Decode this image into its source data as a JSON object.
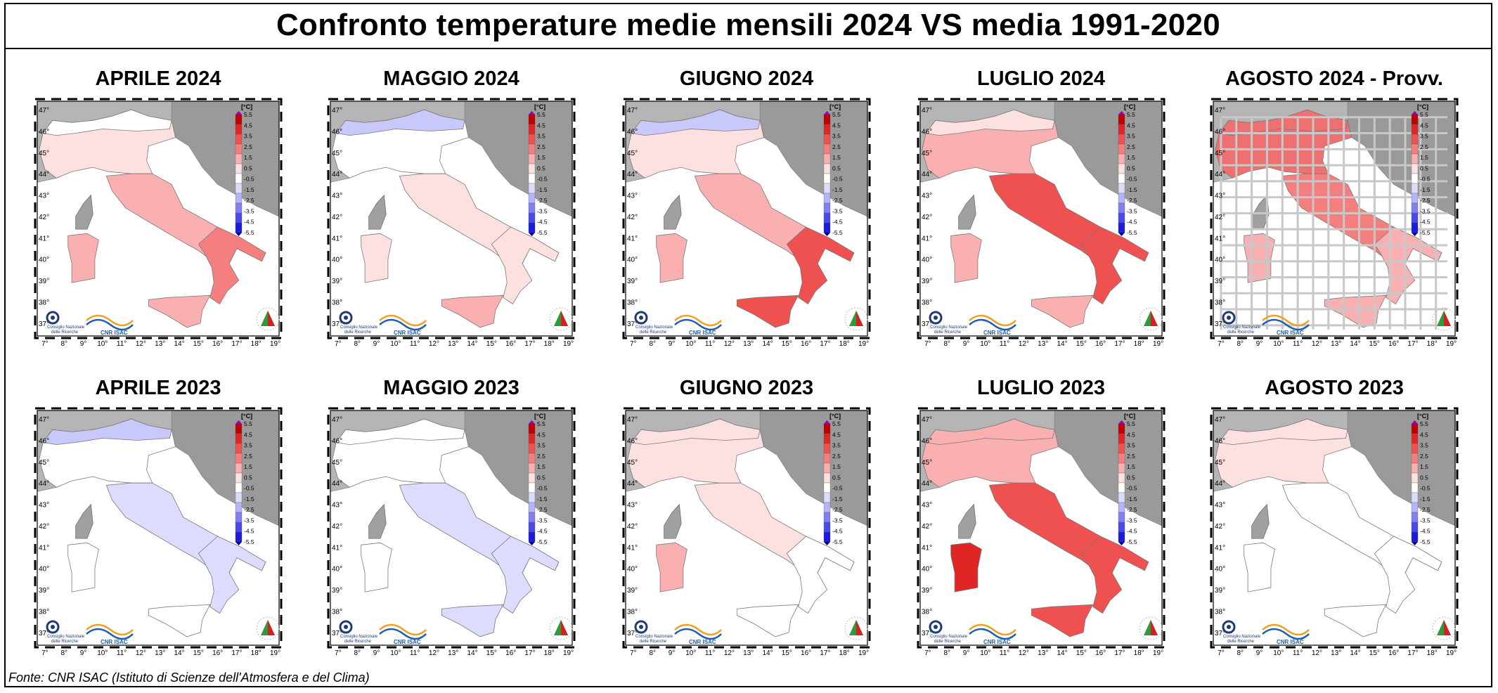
{
  "title": "Confronto temperature medie mensili 2024 VS media 1991-2020",
  "source": "Fonte: CNR ISAC (Istituto di Scienze dell'Atmosfera e del Clima)",
  "scale_unit": "[°C]",
  "scale_ticks": [
    "5.5",
    "4.5",
    "3.5",
    "2.5",
    "1.5",
    "0.5",
    "-0.5",
    "-1.5",
    "-2.5",
    "-3.5",
    "-4.5",
    "-5.5"
  ],
  "scale_colors": [
    "#c00000",
    "#e02525",
    "#ef5050",
    "#f57f7f",
    "#fab0b0",
    "#fde0e0",
    "#ffffff",
    "#dcdcff",
    "#b4b4f7",
    "#8080f0",
    "#4a4aea",
    "#1c1cde"
  ],
  "lat_labels": [
    "47°",
    "46°",
    "45°",
    "44°",
    "43°",
    "42°",
    "41°",
    "40°",
    "39°",
    "38°",
    "37°"
  ],
  "lon_labels": [
    "7°",
    "8°",
    "9°",
    "10°",
    "11°",
    "12°",
    "13°",
    "14°",
    "15°",
    "16°",
    "17°",
    "18°",
    "19°"
  ],
  "logos": {
    "cnr_top": "Consiglio Nazionale",
    "cnr_bottom": "delle Ricerche",
    "isac": "CNR ISAC"
  },
  "panels": [
    {
      "title": "APRILE 2024",
      "colors": {
        "north": "#fde0e0",
        "alps": "#ffffff",
        "center": "#fab0b0",
        "south": "#f57f7f",
        "sicily": "#fab0b0",
        "sardinia": "#fab0b0"
      }
    },
    {
      "title": "MAGGIO 2024",
      "colors": {
        "north": "#ffffff",
        "alps": "#c8c8fa",
        "center": "#fde0e0",
        "south": "#fde0e0",
        "sicily": "#fab0b0",
        "sardinia": "#fde0e0"
      }
    },
    {
      "title": "GIUGNO 2024",
      "colors": {
        "north": "#fde0e0",
        "alps": "#c8c8fa",
        "center": "#fab0b0",
        "south": "#ef5050",
        "sicily": "#ef5050",
        "sardinia": "#fab0b0"
      }
    },
    {
      "title": "LUGLIO 2024",
      "colors": {
        "north": "#fab0b0",
        "alps": "#fde0e0",
        "center": "#ef5050",
        "south": "#ef5050",
        "sicily": "#fab0b0",
        "sardinia": "#fab0b0"
      }
    },
    {
      "title": "AGOSTO 2024 - Provv.",
      "colors": {
        "north": "#ef7070",
        "alps": "#ef7070",
        "center": "#f57f7f",
        "south": "#fab0b0",
        "sicily": "#fab0b0",
        "sardinia": "#fab0b0"
      }
    },
    {
      "title": "APRILE 2023",
      "colors": {
        "north": "#ffffff",
        "alps": "#c8c8fa",
        "center": "#dcdcff",
        "south": "#dcdcff",
        "sicily": "#ffffff",
        "sardinia": "#ffffff"
      }
    },
    {
      "title": "MAGGIO 2023",
      "colors": {
        "north": "#ffffff",
        "alps": "#ffffff",
        "center": "#dcdcff",
        "south": "#dcdcff",
        "sicily": "#dcdcff",
        "sardinia": "#ffffff"
      }
    },
    {
      "title": "GIUGNO 2023",
      "colors": {
        "north": "#fde0e0",
        "alps": "#fde0e0",
        "center": "#fde0e0",
        "south": "#ffffff",
        "sicily": "#ffffff",
        "sardinia": "#fab0b0"
      }
    },
    {
      "title": "LUGLIO 2023",
      "colors": {
        "north": "#fab0b0",
        "alps": "#fab0b0",
        "center": "#ef5050",
        "south": "#ef5050",
        "sicily": "#ef5050",
        "sardinia": "#e02525"
      }
    },
    {
      "title": "AGOSTO 2023",
      "colors": {
        "north": "#fde0e0",
        "alps": "#fde0e0",
        "center": "#ffffff",
        "south": "#ffffff",
        "sicily": "#ffffff",
        "sardinia": "#ffffff"
      }
    }
  ]
}
